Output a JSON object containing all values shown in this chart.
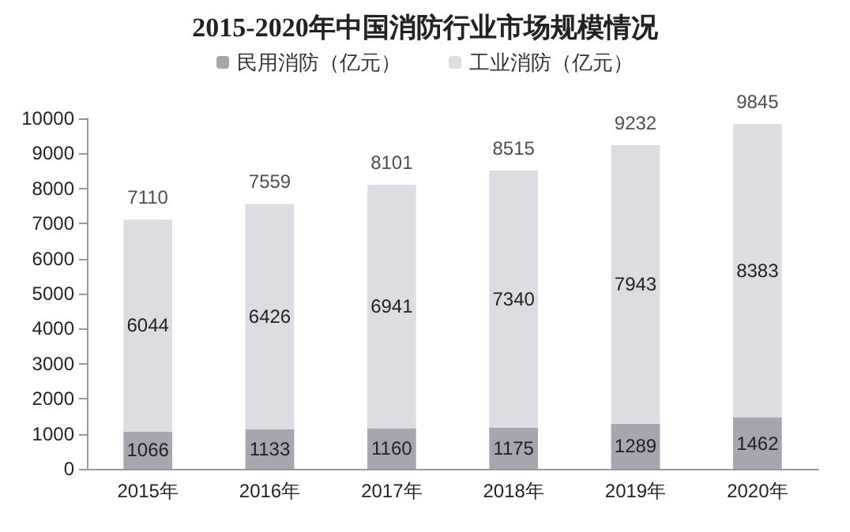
{
  "chart_data": {
    "type": "bar",
    "title": "2015-2020年中国消防行业市场规模情况",
    "stacked": true,
    "categories": [
      "2015年",
      "2016年",
      "2017年",
      "2018年",
      "2019年",
      "2020年"
    ],
    "series": [
      {
        "name": "民用消防（亿元）",
        "color": "#a5a6b0",
        "values": [
          1066,
          1133,
          1160,
          1175,
          1289,
          1462
        ]
      },
      {
        "name": "工业消防（亿元）",
        "color": "#dcdde3",
        "values": [
          6044,
          6426,
          6941,
          7340,
          7943,
          8383
        ]
      }
    ],
    "totals": [
      "7110",
      "7559",
      "8101",
      "8515",
      "9232",
      "9845"
    ],
    "data_labels": true,
    "ylim": [
      0,
      10000
    ],
    "yticks": [
      0,
      1000,
      2000,
      3000,
      4000,
      5000,
      6000,
      7000,
      8000,
      9000,
      10000
    ],
    "grid": false,
    "legend": "top"
  }
}
